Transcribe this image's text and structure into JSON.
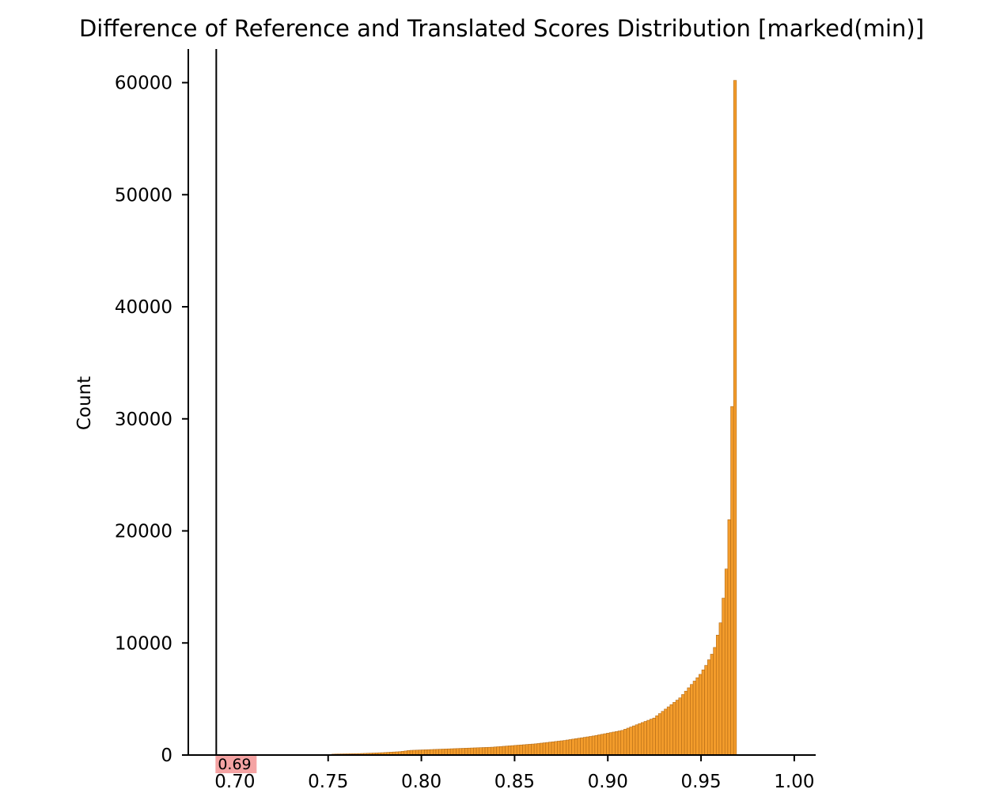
{
  "chart_data": {
    "type": "bar",
    "title": "Difference of Reference and Translated Scores Distribution [marked(min)]",
    "xlabel": "",
    "ylabel": "Count",
    "xlim": [
      0.675,
      1.0115
    ],
    "ylim": [
      0,
      63000
    ],
    "x_ticks": [
      0.7,
      0.75,
      0.8,
      0.85,
      0.9,
      0.95,
      1.0
    ],
    "x_tick_labels": [
      "0.70",
      "0.75",
      "0.80",
      "0.85",
      "0.90",
      "0.95",
      "1.00"
    ],
    "y_ticks": [
      0,
      10000,
      20000,
      30000,
      40000,
      50000,
      60000
    ],
    "y_tick_labels": [
      "0",
      "10000",
      "20000",
      "30000",
      "40000",
      "50000",
      "60000"
    ],
    "grid": false,
    "legend": false,
    "bin_start": 0.69,
    "bin_width": 0.00155,
    "values": [
      30,
      30,
      30,
      30,
      30,
      30,
      30,
      30,
      30,
      30,
      30,
      30,
      30,
      30,
      30,
      30,
      30,
      30,
      30,
      30,
      30,
      30,
      30,
      30,
      30,
      30,
      30,
      30,
      30,
      30,
      30,
      30,
      30,
      30,
      30,
      30,
      30,
      30,
      30,
      30,
      80,
      90,
      95,
      100,
      105,
      110,
      115,
      120,
      125,
      130,
      140,
      150,
      160,
      170,
      180,
      190,
      200,
      210,
      225,
      240,
      255,
      270,
      285,
      300,
      330,
      360,
      400,
      420,
      430,
      440,
      450,
      460,
      470,
      480,
      490,
      500,
      510,
      520,
      530,
      540,
      550,
      560,
      570,
      580,
      590,
      600,
      610,
      620,
      630,
      640,
      650,
      660,
      670,
      680,
      690,
      700,
      720,
      740,
      760,
      780,
      800,
      820,
      840,
      860,
      880,
      900,
      920,
      940,
      960,
      980,
      1000,
      1030,
      1060,
      1090,
      1120,
      1150,
      1180,
      1210,
      1240,
      1270,
      1300,
      1340,
      1380,
      1420,
      1460,
      1500,
      1540,
      1580,
      1620,
      1660,
      1700,
      1750,
      1800,
      1850,
      1900,
      1950,
      2000,
      2050,
      2100,
      2150,
      2200,
      2300,
      2400,
      2500,
      2600,
      2700,
      2800,
      2900,
      3000,
      3100,
      3200,
      3300,
      3500,
      3700,
      3900,
      4100,
      4300,
      4500,
      4700,
      4900,
      5100,
      5400,
      5700,
      6000,
      6300,
      6600,
      6900,
      7200,
      7600,
      8000,
      8500,
      9000,
      9600,
      10700,
      11800,
      14000,
      16600,
      21000,
      31100,
      60200
    ],
    "series_color": "#f39c2b",
    "edge_color": "#b36a16",
    "marker": {
      "x": 0.69,
      "label": "0.69",
      "line_color": "#000000",
      "label_bg": "#f4a3a3"
    }
  }
}
